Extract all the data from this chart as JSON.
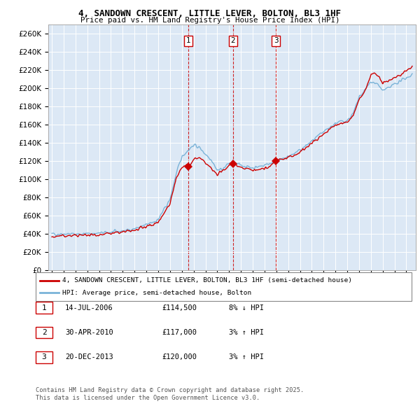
{
  "title_line1": "4, SANDOWN CRESCENT, LITTLE LEVER, BOLTON, BL3 1HF",
  "title_line2": "Price paid vs. HM Land Registry's House Price Index (HPI)",
  "ylim": [
    0,
    270000
  ],
  "yticks": [
    0,
    20000,
    40000,
    60000,
    80000,
    100000,
    120000,
    140000,
    160000,
    180000,
    200000,
    220000,
    240000,
    260000
  ],
  "xlim_start": 1994.7,
  "xlim_end": 2025.8,
  "hpi_color": "#7ab3d8",
  "price_color": "#cc0000",
  "vline_color": "#cc0000",
  "background_color": "#dce8f5",
  "grid_color": "#ffffff",
  "purchases": [
    {
      "label": "1",
      "date_x": 2006.54,
      "price": 114500
    },
    {
      "label": "2",
      "date_x": 2010.33,
      "price": 117000
    },
    {
      "label": "3",
      "date_x": 2013.97,
      "price": 120000
    }
  ],
  "legend_price_label": "4, SANDOWN CRESCENT, LITTLE LEVER, BOLTON, BL3 1HF (semi-detached house)",
  "legend_hpi_label": "HPI: Average price, semi-detached house, Bolton",
  "table_rows": [
    [
      "1",
      "14-JUL-2006",
      "£114,500",
      "8% ↓ HPI"
    ],
    [
      "2",
      "30-APR-2010",
      "£117,000",
      "3% ↑ HPI"
    ],
    [
      "3",
      "20-DEC-2013",
      "£120,000",
      "3% ↑ HPI"
    ]
  ],
  "footnote": "Contains HM Land Registry data © Crown copyright and database right 2025.\nThis data is licensed under the Open Government Licence v3.0.",
  "hpi_anchors_x": [
    1995,
    1996,
    1997,
    1998,
    1999,
    2000,
    2001,
    2002,
    2003,
    2004,
    2005,
    2005.5,
    2006,
    2006.5,
    2007.0,
    2007.5,
    2008,
    2008.5,
    2009,
    2009.5,
    2010,
    2010.5,
    2011,
    2011.5,
    2012,
    2012.5,
    2013,
    2013.5,
    2014,
    2014.5,
    2015,
    2016,
    2017,
    2018,
    2019,
    2020,
    2020.5,
    2021,
    2021.5,
    2022,
    2022.5,
    2023,
    2023.5,
    2024,
    2024.5,
    2025,
    2025.5
  ],
  "hpi_anchors_y": [
    40000,
    40500,
    40000,
    40500,
    41000,
    42000,
    43500,
    46000,
    50000,
    56000,
    78000,
    105000,
    125000,
    132000,
    138000,
    135000,
    128000,
    122000,
    110000,
    112000,
    118000,
    117000,
    116000,
    114000,
    113000,
    114000,
    116000,
    118000,
    120000,
    122000,
    125000,
    132000,
    142000,
    152000,
    162000,
    165000,
    172000,
    190000,
    198000,
    208000,
    205000,
    198000,
    200000,
    205000,
    208000,
    212000,
    215000
  ],
  "price_anchors_x": [
    1995,
    1996,
    1997,
    1998,
    1999,
    2000,
    2001,
    2002,
    2003,
    2004,
    2005,
    2005.5,
    2006,
    2006.3,
    2006.54,
    2006.7,
    2007.0,
    2007.5,
    2008,
    2008.5,
    2009,
    2009.5,
    2010,
    2010.33,
    2010.5,
    2011,
    2011.5,
    2012,
    2012.5,
    2013,
    2013.5,
    2013.97,
    2014,
    2014.5,
    2015,
    2016,
    2017,
    2018,
    2019,
    2020,
    2020.5,
    2021,
    2021.5,
    2022,
    2022.3,
    2022.7,
    2023,
    2023.5,
    2024,
    2024.5,
    2025,
    2025.5
  ],
  "price_anchors_y": [
    37000,
    38000,
    38500,
    39000,
    39500,
    40500,
    42000,
    44000,
    48000,
    53000,
    74000,
    100000,
    113000,
    115000,
    114500,
    116000,
    122000,
    124000,
    118000,
    112000,
    105000,
    110000,
    116000,
    117000,
    117500,
    113000,
    112000,
    110000,
    111000,
    112000,
    115000,
    120000,
    121000,
    122000,
    124000,
    130000,
    140000,
    150000,
    160000,
    163000,
    170000,
    188000,
    197000,
    215000,
    218000,
    212000,
    205000,
    208000,
    212000,
    215000,
    220000,
    225000
  ]
}
